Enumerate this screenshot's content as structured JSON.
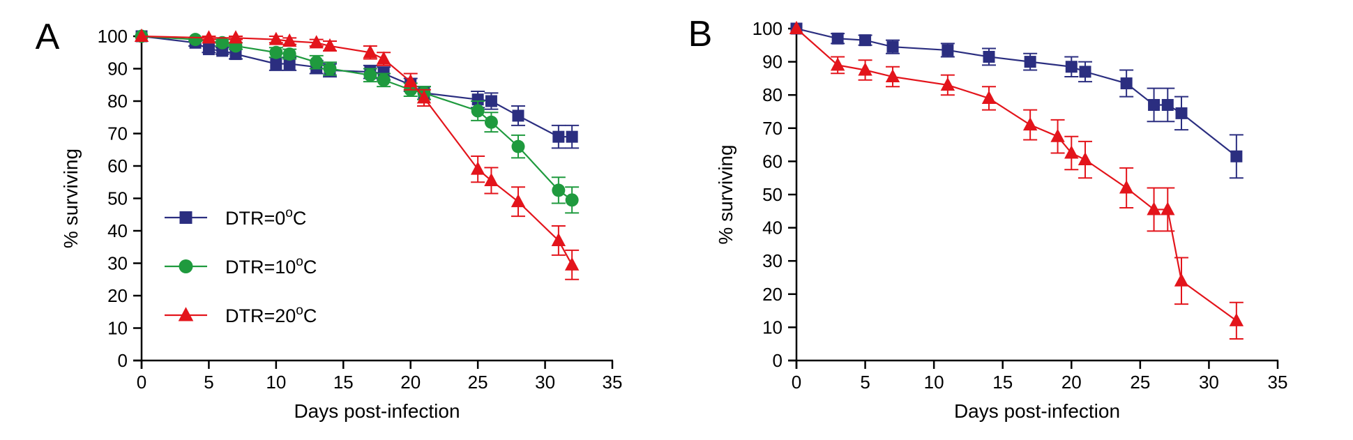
{
  "chart_data": [
    {
      "panel_label": "A",
      "type": "line",
      "xlabel": "Days post-infection",
      "ylabel": "% surviving",
      "xlim": [
        0,
        35
      ],
      "ylim": [
        0,
        100
      ],
      "xticks": [
        0,
        5,
        10,
        15,
        20,
        25,
        30,
        35
      ],
      "yticks": [
        0,
        10,
        20,
        30,
        40,
        50,
        60,
        70,
        80,
        90,
        100
      ],
      "grid": false,
      "legend": "lower-left",
      "series": [
        {
          "name": "DTR=0",
          "legend_suffix": "C",
          "legend_sup": "o",
          "marker": "square",
          "color": "#2b2e80",
          "points": [
            {
              "x": 0,
              "y": 100,
              "err": 0
            },
            {
              "x": 4,
              "y": 98,
              "err": 1
            },
            {
              "x": 5,
              "y": 96,
              "err": 1
            },
            {
              "x": 6,
              "y": 95.5,
              "err": 1
            },
            {
              "x": 7,
              "y": 94.5,
              "err": 1.5
            },
            {
              "x": 10,
              "y": 91.5,
              "err": 2
            },
            {
              "x": 11,
              "y": 91.5,
              "err": 2
            },
            {
              "x": 13,
              "y": 90.5,
              "err": 2
            },
            {
              "x": 14,
              "y": 89.5,
              "err": 2
            },
            {
              "x": 17,
              "y": 89,
              "err": 2
            },
            {
              "x": 18,
              "y": 88.5,
              "err": 2
            },
            {
              "x": 20,
              "y": 85,
              "err": 2
            },
            {
              "x": 21,
              "y": 82.5,
              "err": 2
            },
            {
              "x": 25,
              "y": 80.5,
              "err": 2.5
            },
            {
              "x": 26,
              "y": 80,
              "err": 2.5
            },
            {
              "x": 28,
              "y": 75.5,
              "err": 3
            },
            {
              "x": 31,
              "y": 69,
              "err": 3.5
            },
            {
              "x": 32,
              "y": 69,
              "err": 3.5
            }
          ]
        },
        {
          "name": "DTR=10",
          "legend_suffix": "C",
          "legend_sup": "o",
          "marker": "circle",
          "color": "#1f9a3e",
          "points": [
            {
              "x": 0,
              "y": 100,
              "err": 0
            },
            {
              "x": 4,
              "y": 99,
              "err": 0.5
            },
            {
              "x": 6,
              "y": 98,
              "err": 1
            },
            {
              "x": 7,
              "y": 97,
              "err": 1
            },
            {
              "x": 10,
              "y": 95,
              "err": 1.5
            },
            {
              "x": 11,
              "y": 94.5,
              "err": 1.5
            },
            {
              "x": 13,
              "y": 92,
              "err": 2
            },
            {
              "x": 14,
              "y": 90,
              "err": 2
            },
            {
              "x": 17,
              "y": 88,
              "err": 2
            },
            {
              "x": 18,
              "y": 86.5,
              "err": 2
            },
            {
              "x": 20,
              "y": 83.5,
              "err": 2
            },
            {
              "x": 21,
              "y": 82.5,
              "err": 2
            },
            {
              "x": 25,
              "y": 77,
              "err": 3
            },
            {
              "x": 26,
              "y": 73.5,
              "err": 3
            },
            {
              "x": 28,
              "y": 66,
              "err": 3.5
            },
            {
              "x": 31,
              "y": 52.5,
              "err": 4
            },
            {
              "x": 32,
              "y": 49.5,
              "err": 4
            }
          ]
        },
        {
          "name": "DTR=20",
          "legend_suffix": "C",
          "legend_sup": "o",
          "marker": "triangle",
          "color": "#e3141b",
          "points": [
            {
              "x": 0,
              "y": 100,
              "err": 0
            },
            {
              "x": 5,
              "y": 99.5,
              "err": 0.5
            },
            {
              "x": 7,
              "y": 99.5,
              "err": 0.5
            },
            {
              "x": 10,
              "y": 99,
              "err": 1
            },
            {
              "x": 11,
              "y": 98.5,
              "err": 1
            },
            {
              "x": 13,
              "y": 98,
              "err": 1
            },
            {
              "x": 14,
              "y": 97,
              "err": 1.5
            },
            {
              "x": 17,
              "y": 95,
              "err": 2
            },
            {
              "x": 18,
              "y": 93,
              "err": 2
            },
            {
              "x": 20,
              "y": 86,
              "err": 2.5
            },
            {
              "x": 21,
              "y": 81,
              "err": 2.5
            },
            {
              "x": 25,
              "y": 59,
              "err": 4
            },
            {
              "x": 26,
              "y": 55.5,
              "err": 4
            },
            {
              "x": 28,
              "y": 49,
              "err": 4.5
            },
            {
              "x": 31,
              "y": 37,
              "err": 4.5
            },
            {
              "x": 32,
              "y": 29.5,
              "err": 4.5
            }
          ]
        }
      ]
    },
    {
      "panel_label": "B",
      "type": "line",
      "xlabel": "Days post-infection",
      "ylabel": "% surviving",
      "xlim": [
        0,
        35
      ],
      "ylim": [
        0,
        100
      ],
      "xticks": [
        0,
        5,
        10,
        15,
        20,
        25,
        30,
        35
      ],
      "yticks": [
        0,
        10,
        20,
        30,
        40,
        50,
        60,
        70,
        80,
        90,
        100
      ],
      "grid": false,
      "legend": "none",
      "series": [
        {
          "name": "",
          "marker": "square",
          "color": "#2b2e80",
          "points": [
            {
              "x": 0,
              "y": 100,
              "err": 0
            },
            {
              "x": 3,
              "y": 97,
              "err": 1.5
            },
            {
              "x": 5,
              "y": 96.5,
              "err": 1.5
            },
            {
              "x": 7,
              "y": 94.5,
              "err": 2
            },
            {
              "x": 11,
              "y": 93.5,
              "err": 2
            },
            {
              "x": 14,
              "y": 91.5,
              "err": 2.5
            },
            {
              "x": 17,
              "y": 90,
              "err": 2.5
            },
            {
              "x": 20,
              "y": 88.5,
              "err": 3
            },
            {
              "x": 21,
              "y": 87,
              "err": 3
            },
            {
              "x": 24,
              "y": 83.5,
              "err": 4
            },
            {
              "x": 26,
              "y": 77,
              "err": 5
            },
            {
              "x": 27,
              "y": 77,
              "err": 5
            },
            {
              "x": 28,
              "y": 74.5,
              "err": 5
            },
            {
              "x": 32,
              "y": 61.5,
              "err": 6.5
            }
          ]
        },
        {
          "name": "",
          "marker": "triangle",
          "color": "#e3141b",
          "points": [
            {
              "x": 0,
              "y": 100,
              "err": 0
            },
            {
              "x": 3,
              "y": 89,
              "err": 2.5
            },
            {
              "x": 5,
              "y": 87.5,
              "err": 3
            },
            {
              "x": 7,
              "y": 85.5,
              "err": 3
            },
            {
              "x": 11,
              "y": 83,
              "err": 3
            },
            {
              "x": 14,
              "y": 79,
              "err": 3.5
            },
            {
              "x": 17,
              "y": 71,
              "err": 4.5
            },
            {
              "x": 19,
              "y": 67.5,
              "err": 5
            },
            {
              "x": 20,
              "y": 62.5,
              "err": 5
            },
            {
              "x": 21,
              "y": 60.5,
              "err": 5.5
            },
            {
              "x": 24,
              "y": 52,
              "err": 6
            },
            {
              "x": 26,
              "y": 45.5,
              "err": 6.5
            },
            {
              "x": 27,
              "y": 45.5,
              "err": 6.5
            },
            {
              "x": 28,
              "y": 24,
              "err": 7
            },
            {
              "x": 32,
              "y": 12,
              "err": 5.5
            }
          ]
        }
      ]
    }
  ]
}
